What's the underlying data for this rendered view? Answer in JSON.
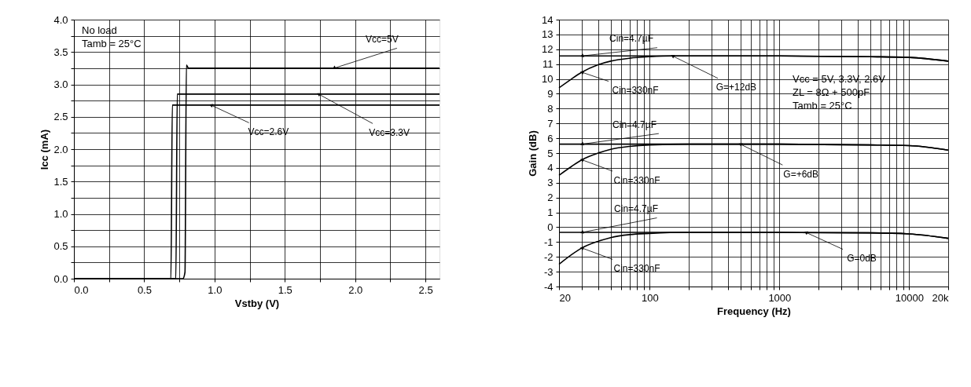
{
  "chart_data": [
    {
      "type": "line",
      "xlabel": "Vstby (V)",
      "ylabel": "Icc (mA)",
      "xlim": [
        0,
        2.6
      ],
      "ylim": [
        0,
        4
      ],
      "xticks": [
        {
          "value": 0,
          "label": "0.0"
        },
        {
          "value": 0.25,
          "label": null
        },
        {
          "value": 0.5,
          "label": "0.5"
        },
        {
          "value": 0.75,
          "label": null
        },
        {
          "value": 1,
          "label": "1.0"
        },
        {
          "value": 1.25,
          "label": null
        },
        {
          "value": 1.5,
          "label": "1.5"
        },
        {
          "value": 1.75,
          "label": null
        },
        {
          "value": 2,
          "label": "2.0"
        },
        {
          "value": 2.25,
          "label": null
        },
        {
          "value": 2.5,
          "label": "2.5"
        }
      ],
      "yticks": [
        {
          "value": 0,
          "label": "0.0"
        },
        {
          "value": 0.25,
          "label": null
        },
        {
          "value": 0.5,
          "label": "0.5"
        },
        {
          "value": 0.75,
          "label": null
        },
        {
          "value": 1,
          "label": "1.0"
        },
        {
          "value": 1.25,
          "label": null
        },
        {
          "value": 1.5,
          "label": "1.5"
        },
        {
          "value": 1.75,
          "label": null
        },
        {
          "value": 2,
          "label": "2.0"
        },
        {
          "value": 2.25,
          "label": null
        },
        {
          "value": 2.5,
          "label": "2.5"
        },
        {
          "value": 2.75,
          "label": null
        },
        {
          "value": 3,
          "label": "3.0"
        },
        {
          "value": 3.25,
          "label": null
        },
        {
          "value": 3.5,
          "label": "3.5"
        },
        {
          "value": 3.75,
          "label": null
        },
        {
          "value": 4,
          "label": "4.0"
        }
      ],
      "series": [
        {
          "color": "#000000",
          "x": [
            0,
            0.69,
            0.7,
            2.6
          ],
          "values": [
            0,
            0,
            2.68,
            2.68
          ]
        },
        {
          "color": "#000000",
          "x": [
            0,
            0.725,
            0.735,
            2.6
          ],
          "values": [
            0,
            0,
            2.85,
            2.85
          ]
        },
        {
          "color": "#000000",
          "x": [
            0,
            0.775,
            0.79,
            0.8,
            0.815,
            2.6
          ],
          "values": [
            0,
            0,
            0.1,
            3.3,
            3.25,
            3.25
          ]
        }
      ],
      "annotations": [
        "No load\nTamb = 25°C",
        {
          "text": "Vcc=2.6V",
          "x": 0.975,
          "y": 2.68
        },
        {
          "text": "Vcc=3.3V",
          "x": 1.74,
          "y": 2.85
        },
        {
          "text": "Vcc=5V",
          "x": 1.85,
          "y": 3.25
        }
      ],
      "grid": true,
      "legend": false,
      "marker": "none",
      "line_style": "solid"
    },
    {
      "type": "line",
      "xlabel": "Frequency (Hz)",
      "ylabel": "Gain (dB)",
      "log": "x",
      "xlim": [
        20,
        20000
      ],
      "ylim": [
        -4,
        14
      ],
      "xticks": [
        20,
        {
          "value": 30,
          "label": null
        },
        {
          "value": 40,
          "label": null
        },
        {
          "value": 50,
          "label": null
        },
        {
          "value": 60,
          "label": null
        },
        {
          "value": 70,
          "label": null
        },
        {
          "value": 80,
          "label": null
        },
        {
          "value": 90,
          "label": null
        },
        100,
        {
          "value": 200,
          "label": null
        },
        {
          "value": 300,
          "label": null
        },
        {
          "value": 400,
          "label": null
        },
        {
          "value": 500,
          "label": null
        },
        {
          "value": 600,
          "label": null
        },
        {
          "value": 700,
          "label": null
        },
        {
          "value": 800,
          "label": null
        },
        {
          "value": 900,
          "label": null
        },
        1000,
        {
          "value": 2000,
          "label": null
        },
        {
          "value": 3000,
          "label": null
        },
        {
          "value": 4000,
          "label": null
        },
        {
          "value": 5000,
          "label": null
        },
        {
          "value": 6000,
          "label": null
        },
        {
          "value": 7000,
          "label": null
        },
        {
          "value": 8000,
          "label": null
        },
        {
          "value": 9000,
          "label": null
        },
        10000,
        {
          "value": 20000,
          "label": "20k"
        }
      ],
      "yticks": [
        -4,
        -3,
        -2,
        -1,
        0,
        1,
        2,
        3,
        4,
        5,
        6,
        7,
        8,
        9,
        10,
        11,
        12,
        13,
        14
      ],
      "series": [
        {
          "color": "#000000",
          "x": [
            20,
            100,
            1000,
            5000,
            10000,
            20000
          ],
          "values": [
            11.55,
            11.55,
            11.55,
            11.5,
            11.45,
            11.2
          ]
        },
        {
          "color": "#000000",
          "x": [
            20,
            25,
            30,
            40,
            50,
            70,
            100,
            150,
            1000,
            5000,
            10000,
            20000
          ],
          "values": [
            9.4,
            10.0,
            10.45,
            10.95,
            11.2,
            11.4,
            11.5,
            11.55,
            11.55,
            11.5,
            11.45,
            11.2
          ]
        },
        {
          "color": "#000000",
          "x": [
            20,
            100,
            1000,
            5000,
            10000,
            20000
          ],
          "values": [
            5.6,
            5.6,
            5.6,
            5.55,
            5.5,
            5.2
          ]
        },
        {
          "color": "#000000",
          "x": [
            20,
            25,
            30,
            40,
            50,
            70,
            100,
            200,
            1000,
            5000,
            10000,
            20000
          ],
          "values": [
            3.5,
            4.1,
            4.55,
            5.0,
            5.25,
            5.45,
            5.55,
            5.6,
            5.6,
            5.55,
            5.5,
            5.2
          ]
        },
        {
          "color": "#000000",
          "x": [
            20,
            100,
            1000,
            5000,
            10000,
            20000
          ],
          "values": [
            -0.35,
            -0.35,
            -0.35,
            -0.38,
            -0.45,
            -0.75
          ]
        },
        {
          "color": "#000000",
          "x": [
            20,
            25,
            30,
            40,
            50,
            70,
            100,
            200,
            1000,
            5000,
            10000,
            20000
          ],
          "values": [
            -2.5,
            -1.85,
            -1.4,
            -0.95,
            -0.7,
            -0.5,
            -0.42,
            -0.35,
            -0.35,
            -0.38,
            -0.45,
            -0.75
          ]
        }
      ],
      "annotations": [
        {
          "text": "Cin=4.7µF",
          "x": 30,
          "y": 11.55
        },
        {
          "text": "Cin=330nF",
          "x": 30,
          "y": 10.45
        },
        {
          "text": "G=+12dB",
          "x": 150,
          "y": 11.55
        },
        {
          "text": "Cin=4.7µF",
          "x": 30,
          "y": 5.6
        },
        {
          "text": "Cin=330nF",
          "x": 30,
          "y": 4.55
        },
        {
          "text": "G=+6dB",
          "x": 500,
          "y": 5.6
        },
        {
          "text": "Cin=4.7µF",
          "x": 30,
          "y": -0.35
        },
        {
          "text": "Cin=330nF",
          "x": 30,
          "y": -1.4
        },
        {
          "text": "G=0dB",
          "x": 1600,
          "y": -0.35
        },
        "Vcc = 5V, 3.3V, 2.6V\nZL = 8Ω + 500pF\nTamb = 25°C"
      ],
      "grid": true,
      "legend": false,
      "marker": "none",
      "line_style": "solid"
    }
  ]
}
